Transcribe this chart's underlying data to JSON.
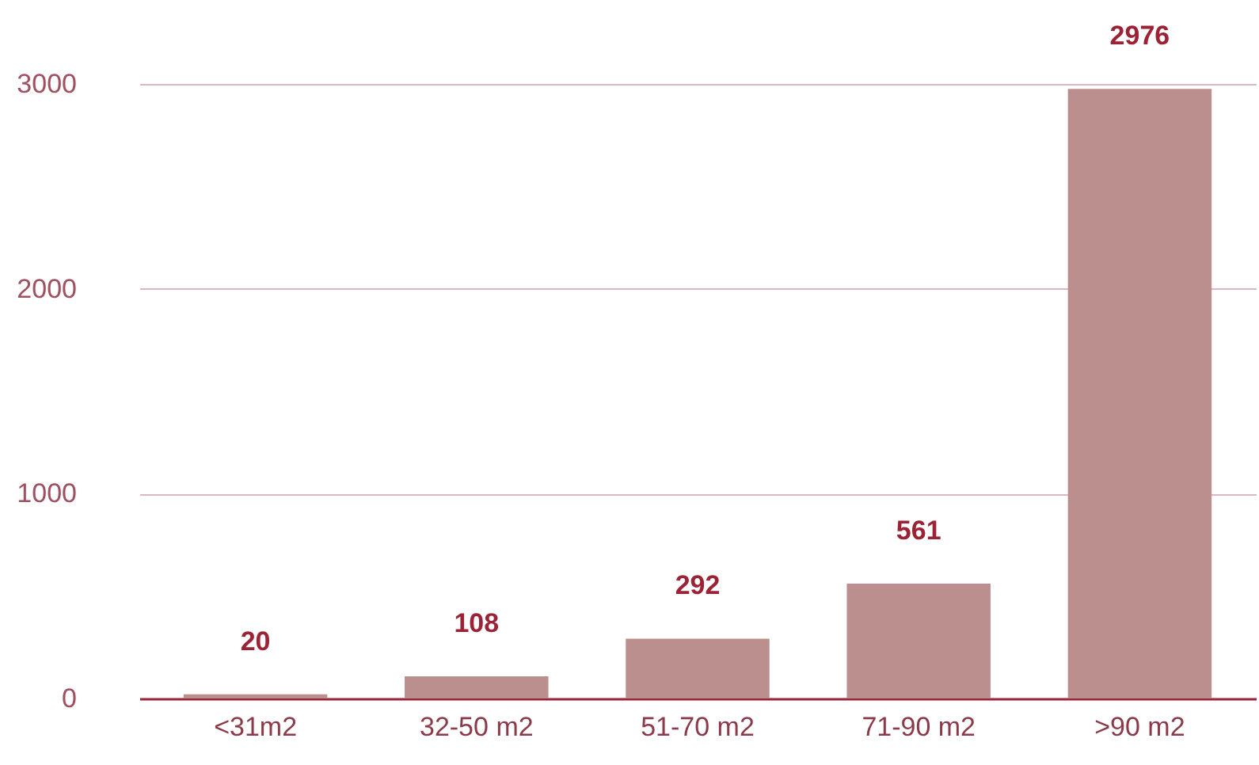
{
  "chart_data": {
    "type": "bar",
    "categories": [
      "<31m2",
      "32-50 m2",
      "51-70 m2",
      "71-90 m2",
      ">90 m2"
    ],
    "values": [
      20,
      108,
      292,
      561,
      2976
    ],
    "color": "#bc8f8f",
    "ylim": [
      0,
      3000
    ],
    "yticks": [
      0,
      1000,
      2000,
      3000
    ],
    "grid": "y",
    "data_labels": true
  }
}
